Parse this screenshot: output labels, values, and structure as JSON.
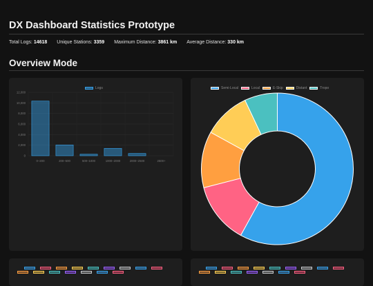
{
  "page": {
    "title": "DX Dashboard Statistics Prototype",
    "section_title": "Overview Mode"
  },
  "stats": {
    "total_logs_label": "Total Logs:",
    "total_logs_value": "14618",
    "unique_stations_label": "Unique Stations:",
    "unique_stations_value": "3359",
    "max_distance_label": "Maximum Distance:",
    "max_distance_value": "3861 km",
    "avg_distance_label": "Average Distance:",
    "avg_distance_value": "330 km"
  },
  "colors": {
    "bar": "#36a2eb",
    "semi_local": "#36a2eb",
    "local": "#ff6384",
    "edge": "#ff9f40",
    "distant": "#ffcd56",
    "tropo": "#4bc0c0"
  },
  "chart_data": [
    {
      "type": "bar",
      "legend": [
        "Logs"
      ],
      "categories": [
        "0–200",
        "200–500",
        "500–1000",
        "1000–2000",
        "2000–2500",
        "2500+"
      ],
      "series": [
        {
          "name": "Logs",
          "values": [
            10350,
            2050,
            290,
            1400,
            430,
            0
          ]
        }
      ],
      "ylim": [
        0,
        12000
      ],
      "yticks": [
        "0",
        "2,000",
        "4,000",
        "6,000",
        "8,000",
        "10,000",
        "12,000"
      ]
    },
    {
      "type": "pie",
      "legend": [
        "Semi-Local",
        "Local",
        "E-Skip",
        "Distant",
        "Tropo"
      ],
      "values": [
        58,
        13,
        12,
        10,
        7
      ],
      "colors": [
        "#36a2eb",
        "#ff6384",
        "#ff9f40",
        "#ffcd56",
        "#4bc0c0"
      ]
    }
  ]
}
